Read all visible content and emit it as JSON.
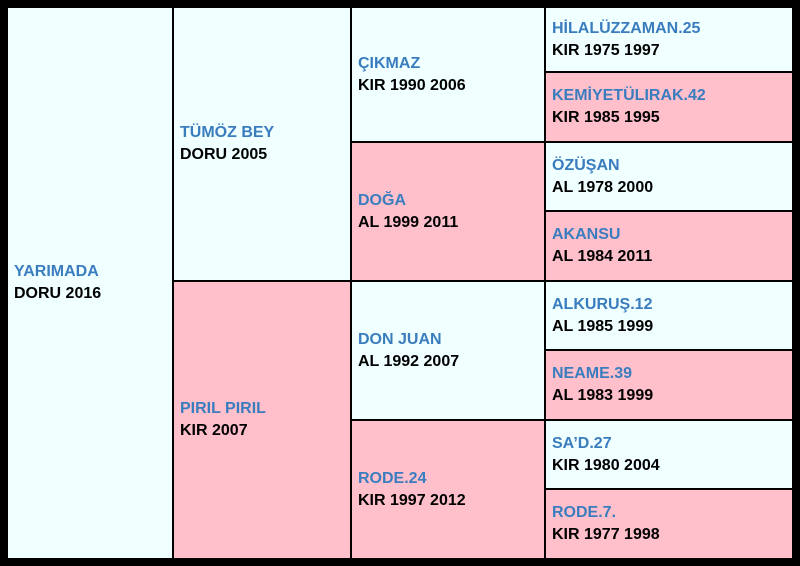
{
  "colors": {
    "sire_bg": "#f0ffff",
    "dam_bg": "#ffc0cb",
    "name_text": "#3a7dbf",
    "info_text": "#000000",
    "border": "#000000"
  },
  "pedigree": {
    "subject": {
      "name": "YARIMADA",
      "info": "DORU 2016"
    },
    "sire": {
      "name": "TÜMÖZ BEY",
      "info": "DORU 2005"
    },
    "dam": {
      "name": "PIRIL PIRIL",
      "info": "KIR 2007"
    },
    "sire_sire": {
      "name": "ÇIKMAZ",
      "info": "KIR 1990 2006"
    },
    "sire_dam": {
      "name": "DOĞA",
      "info": "AL 1999 2011"
    },
    "dam_sire": {
      "name": "DON JUAN",
      "info": "AL 1992 2007"
    },
    "dam_dam": {
      "name": "RODE.24",
      "info": "KIR 1997 2012"
    },
    "ggen": [
      {
        "name": "HİLALÜZZAMAN.25",
        "info": "KIR 1975 1997"
      },
      {
        "name": "KEMİYETÜLIRAK.42",
        "info": "KIR 1985 1995"
      },
      {
        "name": "ÖZÜŞAN",
        "info": "AL 1978 2000"
      },
      {
        "name": "AKANSU",
        "info": "AL 1984 2011"
      },
      {
        "name": "ALKURUŞ.12",
        "info": "AL 1985 1999"
      },
      {
        "name": "NEAME.39",
        "info": "AL 1983 1999"
      },
      {
        "name": "SA’D.27",
        "info": "KIR 1980 2004"
      },
      {
        "name": "RODE.7.",
        "info": "KIR 1977 1998"
      }
    ]
  }
}
